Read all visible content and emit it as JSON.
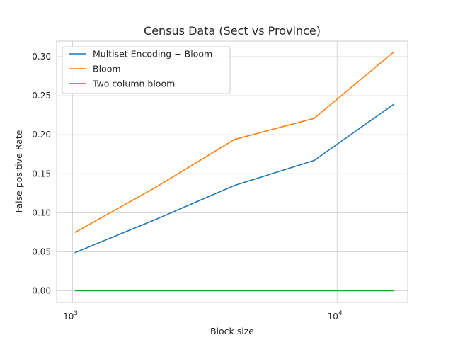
{
  "chart_data": {
    "type": "line",
    "title": "Census Data (Sect vs Province)",
    "xlabel": "Block size",
    "ylabel": "False positive Rate",
    "xscale": "log",
    "xlim": [
      870,
      18500
    ],
    "ylim": [
      -0.015,
      0.32
    ],
    "x": [
      1024,
      2048,
      4096,
      8192,
      16384
    ],
    "x_ticks": [
      {
        "value": 1000,
        "base": "10",
        "exp": "3"
      },
      {
        "value": 10000,
        "base": "10",
        "exp": "4"
      }
    ],
    "y_ticks": [
      0.0,
      0.05,
      0.1,
      0.15,
      0.2,
      0.25,
      0.3
    ],
    "y_tick_labels": [
      "0.00",
      "0.05",
      "0.10",
      "0.15",
      "0.20",
      "0.25",
      "0.30"
    ],
    "grid": true,
    "legend_position": "top-left",
    "series": [
      {
        "name": "Multiset Encoding + Bloom",
        "color": "#1f77b4",
        "values": [
          0.049,
          0.091,
          0.135,
          0.167,
          0.239
        ]
      },
      {
        "name": "Bloom",
        "color": "#ff7f0e",
        "values": [
          0.075,
          0.132,
          0.194,
          0.221,
          0.306
        ]
      },
      {
        "name": "Two column bloom",
        "color": "#2ca02c",
        "values": [
          0.0,
          0.0,
          0.0,
          0.0,
          0.0
        ]
      }
    ]
  }
}
